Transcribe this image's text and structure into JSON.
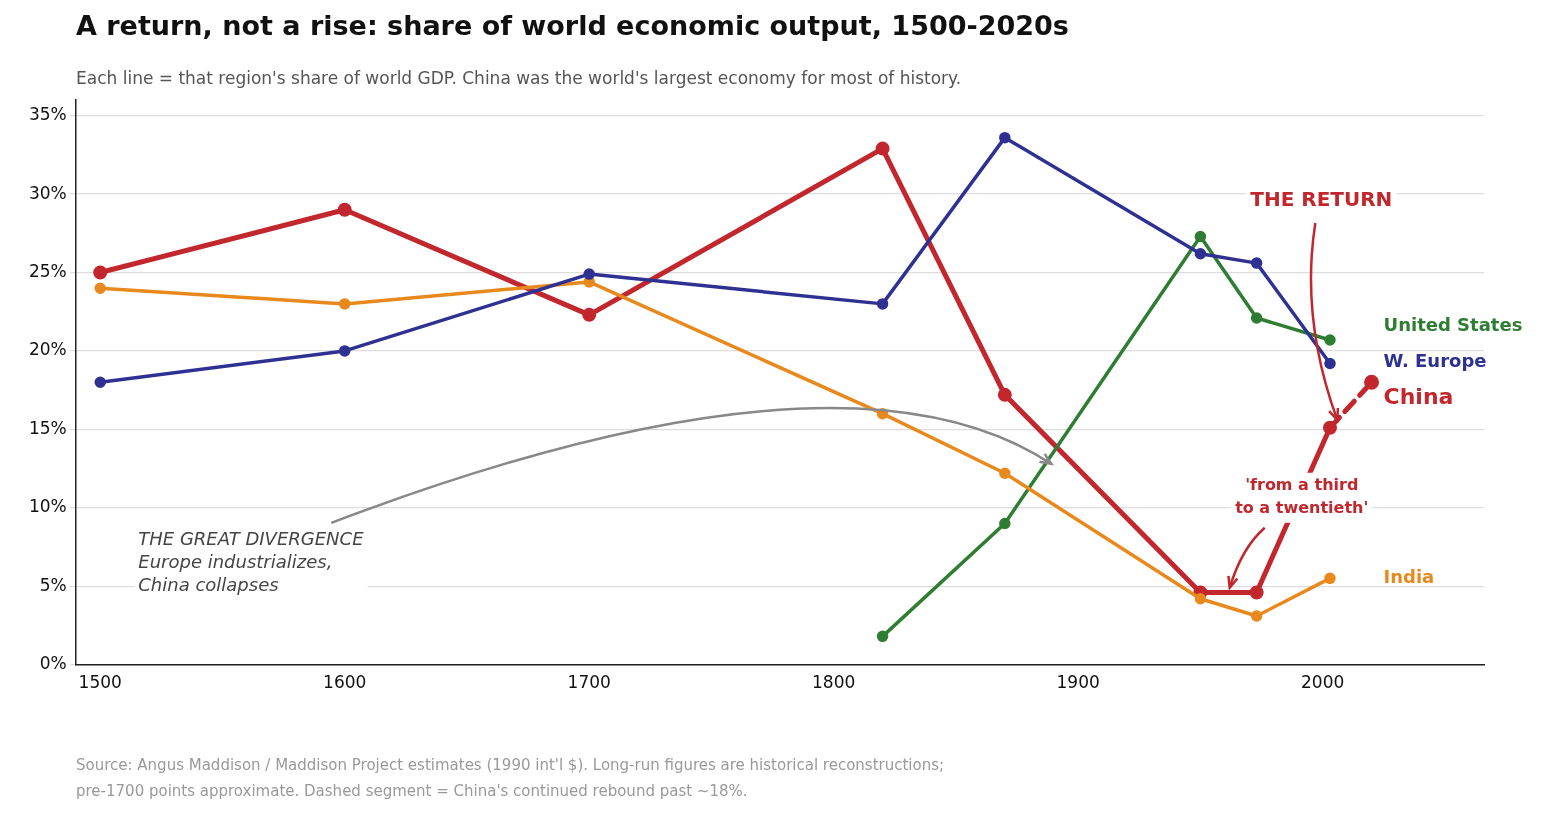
{
  "chart_data": {
    "type": "line",
    "title": "A return, not a rise: share of world economic output, 1500-2020s",
    "subtitle": "Each line = that region's share of world GDP. China was the world's largest economy for most of history.",
    "xlim": [
      1490,
      2066
    ],
    "xticks": [
      1500,
      1600,
      1700,
      1800,
      1900,
      2000
    ],
    "ylim": [
      0,
      36
    ],
    "yticks": [
      {
        "value": 0,
        "label": "0%"
      },
      {
        "value": 5,
        "label": "5%"
      },
      {
        "value": 10,
        "label": "10%"
      },
      {
        "value": 15,
        "label": "15%"
      },
      {
        "value": 20,
        "label": "20%"
      },
      {
        "value": 25,
        "label": "25%"
      },
      {
        "value": 30,
        "label": "30%"
      },
      {
        "value": 35,
        "label": "35%"
      }
    ],
    "grid": "y",
    "legend": "right",
    "marker": "circle",
    "series": [
      {
        "name": "W. Europe",
        "color": "#2e3192",
        "x": [
          1500,
          1600,
          1700,
          1820,
          1870,
          1950,
          1973,
          2003
        ],
        "values": [
          18,
          20,
          24.9,
          23,
          33.6,
          26.2,
          25.6,
          19.2
        ]
      },
      {
        "name": "India",
        "color": "#e8891e",
        "x": [
          1500,
          1600,
          1700,
          1820,
          1870,
          1950,
          1973,
          2003
        ],
        "values": [
          24,
          23,
          24.4,
          16,
          12.2,
          4.2,
          3.1,
          5.5
        ]
      },
      {
        "name": "United States",
        "color": "#2e7d32",
        "x": [
          1820,
          1870,
          1950,
          1973,
          2003
        ],
        "values": [
          1.8,
          9,
          27.3,
          22.1,
          20.7
        ]
      },
      {
        "color": "#c1272d",
        "x": [
          2003,
          2020
        ],
        "values": [
          15.1,
          18
        ],
        "line_style": "dashed"
      },
      {
        "name": "China",
        "color": "#c1272d",
        "x": [
          1500,
          1600,
          1700,
          1820,
          1870,
          1950,
          1973,
          2003
        ],
        "values": [
          25,
          29,
          22.3,
          32.9,
          17.2,
          4.6,
          4.6,
          15.1
        ]
      }
    ],
    "annotations": [
      {
        "text": "THE RETURN",
        "x": 2006,
        "y": 15.6
      },
      {
        "text": "'from a third\nto a twentieth'",
        "x": 1962,
        "y": 4.9
      },
      {
        "text": "THE GREAT DIVERGENCE\nEurope industrializes,\nChina collapses",
        "x": 1889,
        "y": 12.8
      },
      "Source: Angus Maddison / Maddison Project estimates (1990 int'l $). Long-run figures are historical reconstructions;\npre-1700 points approximate. Dashed segment = China's continued rebound past ~18%."
    ]
  }
}
